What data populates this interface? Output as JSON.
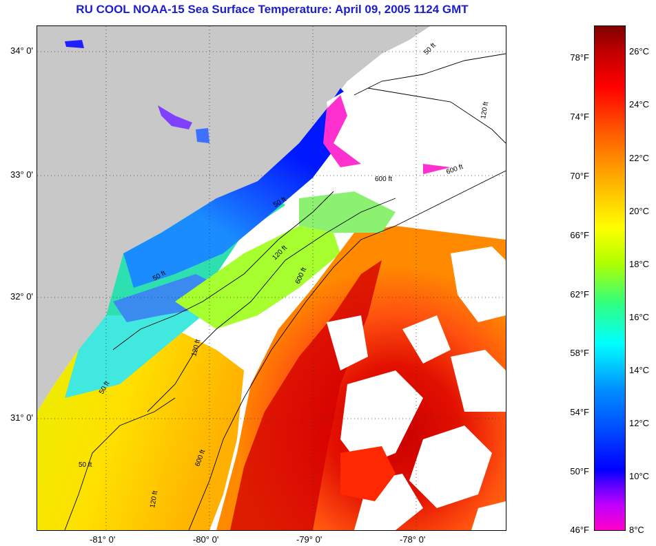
{
  "title": "RU COOL  NOAA-15  Sea Surface Temperature:  April 09, 2005 1124 GMT",
  "map": {
    "lat_labels": [
      "34° 0'",
      "33° 0'",
      "32° 0'",
      "31° 0'"
    ],
    "lon_labels": [
      "-81° 0'",
      "-80° 0'",
      "-79° 0'",
      "-78° 0'"
    ],
    "contour_labels": [
      "50 ft",
      "50 ft",
      "50 ft",
      "50 ft",
      "50 ft",
      "120 ft",
      "120 ft",
      "120 ft",
      "120 ft",
      "600 ft",
      "600 ft",
      "600 ft",
      "600 ft"
    ],
    "colors": {
      "land": "#c8c8c8",
      "cloud": "#ffffff",
      "cold": "#0000ff",
      "warm": "#ff0000"
    }
  },
  "colorbar": {
    "fahrenheit_labels": [
      "78°F",
      "74°F",
      "70°F",
      "66°F",
      "62°F",
      "58°F",
      "54°F",
      "50°F",
      "46°F"
    ],
    "celsius_labels": [
      "26°C",
      "24°C",
      "22°C",
      "20°C",
      "18°C",
      "16°C",
      "14°C",
      "12°C",
      "10°C",
      "8°C"
    ]
  }
}
